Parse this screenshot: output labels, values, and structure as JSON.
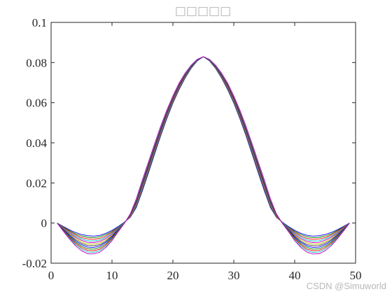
{
  "watermark": "CSDN @Simuworld",
  "chart_data": {
    "type": "line",
    "title": "□□□□□",
    "xlabel": "",
    "ylabel": "",
    "xlim": [
      0,
      50
    ],
    "ylim": [
      -0.02,
      0.1
    ],
    "xticks": [
      0,
      10,
      20,
      30,
      40,
      50
    ],
    "xtick_labels": [
      "0",
      "10",
      "20",
      "30",
      "40",
      "50"
    ],
    "yticks": [
      -0.02,
      0,
      0.02,
      0.04,
      0.06,
      0.08,
      0.1
    ],
    "ytick_labels": [
      "-0.02",
      "0",
      "0.02",
      "0.04",
      "0.06",
      "0.08",
      "0.1"
    ],
    "grid": false,
    "legend": "none",
    "x": [
      1,
      2,
      3,
      4,
      5,
      6,
      7,
      8,
      9,
      10,
      11,
      12,
      13,
      14,
      15,
      16,
      17,
      18,
      19,
      20,
      21,
      22,
      23,
      24,
      25,
      26,
      27,
      28,
      29,
      30,
      31,
      32,
      33,
      34,
      35,
      36,
      37,
      38,
      39,
      40,
      41,
      42,
      43,
      44,
      45,
      46,
      47,
      48,
      49
    ],
    "series": [
      {
        "color": "#0000ff",
        "values": [
          0.0,
          -0.0017,
          -0.0033,
          -0.0047,
          -0.0057,
          -0.0063,
          -0.0065,
          -0.0061,
          -0.0051,
          -0.0036,
          -0.0018,
          0.0004,
          0.0028,
          0.0078,
          0.0161,
          0.0251,
          0.0344,
          0.0435,
          0.052,
          0.0597,
          0.0664,
          0.0722,
          0.0771,
          0.0808,
          0.0829,
          0.0808,
          0.0771,
          0.0722,
          0.0664,
          0.0597,
          0.052,
          0.0435,
          0.0344,
          0.0251,
          0.0161,
          0.0078,
          0.0028,
          0.0004,
          -0.0018,
          -0.0036,
          -0.0051,
          -0.0061,
          -0.0065,
          -0.0063,
          -0.0057,
          -0.0047,
          -0.0033,
          -0.0017,
          0.0
        ]
      },
      {
        "color": "#008000",
        "values": [
          0.0,
          -0.0019,
          -0.0037,
          -0.0053,
          -0.0064,
          -0.0071,
          -0.0073,
          -0.0068,
          -0.0057,
          -0.0041,
          -0.0021,
          0.0003,
          0.003,
          0.0082,
          0.0166,
          0.0256,
          0.0349,
          0.0439,
          0.0524,
          0.06,
          0.0667,
          0.0724,
          0.0772,
          0.0809,
          0.0829,
          0.0809,
          0.0772,
          0.0724,
          0.0667,
          0.06,
          0.0524,
          0.0439,
          0.0349,
          0.0256,
          0.0166,
          0.0082,
          0.003,
          0.0003,
          -0.0021,
          -0.0041,
          -0.0057,
          -0.0068,
          -0.0073,
          -0.0071,
          -0.0064,
          -0.0053,
          -0.0037,
          -0.0019,
          0.0
        ]
      },
      {
        "color": "#ff0000",
        "values": [
          0.0,
          -0.0021,
          -0.0041,
          -0.0059,
          -0.0072,
          -0.0079,
          -0.0081,
          -0.0076,
          -0.0064,
          -0.0045,
          -0.0023,
          0.0002,
          0.0031,
          0.0086,
          0.0171,
          0.0261,
          0.0354,
          0.0444,
          0.0528,
          0.0604,
          0.067,
          0.0727,
          0.0774,
          0.081,
          0.0829,
          0.081,
          0.0774,
          0.0727,
          0.067,
          0.0604,
          0.0528,
          0.0444,
          0.0354,
          0.0261,
          0.0171,
          0.0086,
          0.0031,
          0.0002,
          -0.0023,
          -0.0045,
          -0.0064,
          -0.0076,
          -0.0081,
          -0.0079,
          -0.0072,
          -0.0059,
          -0.0041,
          -0.0021,
          0.0
        ]
      },
      {
        "color": "#00bfbf",
        "values": [
          0.0,
          -0.0024,
          -0.0046,
          -0.0065,
          -0.0079,
          -0.0088,
          -0.0089,
          -0.0084,
          -0.007,
          -0.005,
          -0.0025,
          0.0002,
          0.0033,
          0.009,
          0.0176,
          0.0266,
          0.0358,
          0.0448,
          0.0532,
          0.0607,
          0.0673,
          0.0729,
          0.0775,
          0.081,
          0.0829,
          0.081,
          0.0775,
          0.0729,
          0.0673,
          0.0607,
          0.0532,
          0.0448,
          0.0358,
          0.0266,
          0.0176,
          0.009,
          0.0033,
          0.0002,
          -0.0025,
          -0.005,
          -0.007,
          -0.0084,
          -0.0089,
          -0.0088,
          -0.0079,
          -0.0065,
          -0.0046,
          -0.0024,
          0.0
        ]
      },
      {
        "color": "#bf00bf",
        "values": [
          0.0,
          -0.0026,
          -0.005,
          -0.0071,
          -0.0086,
          -0.0096,
          -0.0097,
          -0.0091,
          -0.0077,
          -0.0055,
          -0.0028,
          0.0001,
          0.0035,
          0.0094,
          0.0181,
          0.0271,
          0.0363,
          0.0452,
          0.0536,
          0.061,
          0.0676,
          0.0731,
          0.0776,
          0.0811,
          0.0829,
          0.0811,
          0.0776,
          0.0731,
          0.0676,
          0.061,
          0.0536,
          0.0452,
          0.0363,
          0.0271,
          0.0181,
          0.0094,
          0.0035,
          0.0001,
          -0.0028,
          -0.0055,
          -0.0077,
          -0.0091,
          -0.0097,
          -0.0096,
          -0.0086,
          -0.0071,
          -0.005,
          -0.0026,
          0.0
        ]
      },
      {
        "color": "#bfbf00",
        "values": [
          0.0,
          -0.0028,
          -0.0054,
          -0.0077,
          -0.0094,
          -0.0104,
          -0.0105,
          -0.0099,
          -0.0083,
          -0.006,
          -0.003,
          0.0001,
          0.0036,
          0.0098,
          0.0186,
          0.0276,
          0.0368,
          0.0457,
          0.054,
          0.0614,
          0.0679,
          0.0733,
          0.0778,
          0.0812,
          0.0829,
          0.0812,
          0.0778,
          0.0733,
          0.0679,
          0.0614,
          0.054,
          0.0457,
          0.0368,
          0.0276,
          0.0186,
          0.0098,
          0.0036,
          0.0001,
          -0.003,
          -0.006,
          -0.0083,
          -0.0099,
          -0.0105,
          -0.0104,
          -0.0094,
          -0.0077,
          -0.0054,
          -0.0028,
          0.0
        ]
      },
      {
        "color": "#404040",
        "values": [
          0.0,
          -0.003,
          -0.0058,
          -0.0083,
          -0.0101,
          -0.0112,
          -0.0113,
          -0.0107,
          -0.009,
          -0.0064,
          -0.0032,
          0.0,
          0.0038,
          0.0102,
          0.0191,
          0.0281,
          0.0372,
          0.0461,
          0.0543,
          0.0617,
          0.0682,
          0.0735,
          0.0779,
          0.0812,
          0.0829,
          0.0812,
          0.0779,
          0.0735,
          0.0682,
          0.0617,
          0.0543,
          0.0461,
          0.0372,
          0.0281,
          0.0191,
          0.0102,
          0.0038,
          0.0,
          -0.0032,
          -0.0064,
          -0.009,
          -0.0107,
          -0.0113,
          -0.0112,
          -0.0101,
          -0.0083,
          -0.0058,
          -0.003,
          0.0
        ]
      },
      {
        "color": "#0000ff",
        "values": [
          0.0,
          -0.0032,
          -0.0062,
          -0.0089,
          -0.0108,
          -0.012,
          -0.0121,
          -0.0114,
          -0.0096,
          -0.0069,
          -0.0035,
          -0.0001,
          0.004,
          0.0106,
          0.0196,
          0.0286,
          0.0377,
          0.0465,
          0.0547,
          0.0621,
          0.0685,
          0.0738,
          0.0781,
          0.0813,
          0.0829,
          0.0813,
          0.0781,
          0.0738,
          0.0685,
          0.0621,
          0.0547,
          0.0465,
          0.0377,
          0.0286,
          0.0196,
          0.0106,
          0.004,
          -0.0001,
          -0.0035,
          -0.0069,
          -0.0096,
          -0.0114,
          -0.0121,
          -0.012,
          -0.0108,
          -0.0089,
          -0.0062,
          -0.0032,
          0.0
        ]
      },
      {
        "color": "#008000",
        "values": [
          0.0,
          -0.0035,
          -0.0067,
          -0.0095,
          -0.0116,
          -0.0128,
          -0.013,
          -0.0122,
          -0.0103,
          -0.0074,
          -0.0037,
          -0.0001,
          0.0041,
          0.011,
          0.0201,
          0.0291,
          0.0382,
          0.047,
          0.0551,
          0.0624,
          0.0688,
          0.074,
          0.0782,
          0.0814,
          0.0829,
          0.0814,
          0.0782,
          0.074,
          0.0688,
          0.0624,
          0.0551,
          0.047,
          0.0382,
          0.0291,
          0.0201,
          0.011,
          0.0041,
          -0.0001,
          -0.0037,
          -0.0074,
          -0.0103,
          -0.0122,
          -0.013,
          -0.0128,
          -0.0116,
          -0.0095,
          -0.0067,
          -0.0035,
          0.0
        ]
      },
      {
        "color": "#ff0000",
        "values": [
          0.0,
          -0.0037,
          -0.0071,
          -0.0101,
          -0.0123,
          -0.0136,
          -0.0138,
          -0.013,
          -0.0109,
          -0.0078,
          -0.004,
          -0.0002,
          0.0043,
          0.0114,
          0.0206,
          0.0296,
          0.0386,
          0.0474,
          0.0555,
          0.0627,
          0.0691,
          0.0742,
          0.0784,
          0.0815,
          0.0829,
          0.0815,
          0.0784,
          0.0742,
          0.0691,
          0.0627,
          0.0555,
          0.0474,
          0.0386,
          0.0296,
          0.0206,
          0.0114,
          0.0043,
          -0.0002,
          -0.004,
          -0.0078,
          -0.0109,
          -0.013,
          -0.0138,
          -0.0136,
          -0.0123,
          -0.0101,
          -0.0071,
          -0.0037,
          0.0
        ]
      },
      {
        "color": "#00bfbf",
        "values": [
          0.0,
          -0.0039,
          -0.0075,
          -0.0107,
          -0.013,
          -0.0144,
          -0.0146,
          -0.0137,
          -0.0116,
          -0.0083,
          -0.0042,
          -0.0002,
          0.0045,
          0.0118,
          0.0211,
          0.0301,
          0.0391,
          0.0478,
          0.0559,
          0.0631,
          0.0694,
          0.0744,
          0.0785,
          0.0815,
          0.0829,
          0.0815,
          0.0785,
          0.0744,
          0.0694,
          0.0631,
          0.0559,
          0.0478,
          0.0391,
          0.0301,
          0.0211,
          0.0118,
          0.0045,
          -0.0002,
          -0.0042,
          -0.0083,
          -0.0116,
          -0.0137,
          -0.0146,
          -0.0144,
          -0.013,
          -0.0107,
          -0.0075,
          -0.0039,
          0.0
        ]
      },
      {
        "color": "#bf00bf",
        "values": [
          0.0,
          -0.0041,
          -0.0079,
          -0.0113,
          -0.0138,
          -0.0153,
          -0.0154,
          -0.0145,
          -0.0122,
          -0.0088,
          -0.0044,
          -0.0003,
          0.0046,
          0.0122,
          0.0216,
          0.0306,
          0.0396,
          0.0483,
          0.0563,
          0.0634,
          0.0697,
          0.0747,
          0.0787,
          0.0816,
          0.0829,
          0.0816,
          0.0787,
          0.0747,
          0.0697,
          0.0634,
          0.0563,
          0.0483,
          0.0396,
          0.0306,
          0.0216,
          0.0122,
          0.0046,
          -0.0003,
          -0.0044,
          -0.0088,
          -0.0122,
          -0.0145,
          -0.0154,
          -0.0153,
          -0.0138,
          -0.0113,
          -0.0079,
          -0.0041,
          0.0
        ]
      }
    ]
  }
}
